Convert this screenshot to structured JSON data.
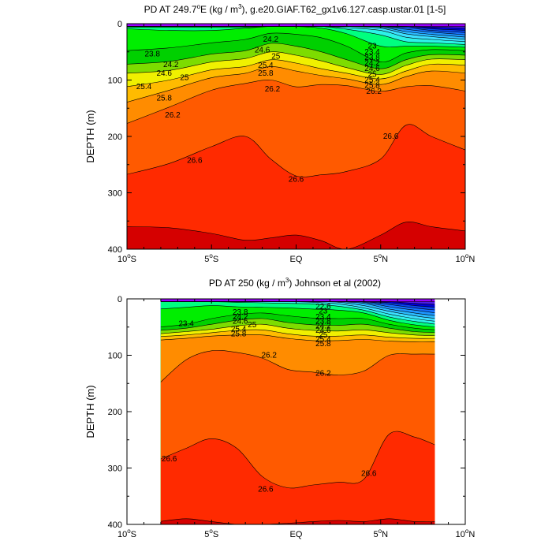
{
  "chart_data": [
    {
      "type": "contour",
      "title_prefix": "PD AT 249.7",
      "title_suffix": "E (kg / m",
      "title_tail": "), g.e20.GIAF.T62_gx1v6.127.casp.ustar.01 [1-5]",
      "superscript_degree": "o",
      "superscript_cube": "3",
      "ylabel": "DEPTH (m)",
      "ylim": [
        400,
        0
      ],
      "xlim": [
        -10,
        10
      ],
      "xticks": [
        {
          "v": -10,
          "main": "10",
          "deg": "o",
          "hem": "S"
        },
        {
          "v": -5,
          "main": "5",
          "deg": "o",
          "hem": "S"
        },
        {
          "v": 0,
          "main": "EQ",
          "deg": "",
          "hem": ""
        },
        {
          "v": 5,
          "main": "5",
          "deg": "o",
          "hem": "N"
        },
        {
          "v": 10,
          "main": "10",
          "deg": "o",
          "hem": "N"
        }
      ],
      "yticks": [
        0,
        100,
        200,
        300,
        400
      ],
      "data_range": [
        -10,
        10
      ],
      "x": [
        -10,
        -7.5,
        -5,
        -3,
        -1.5,
        0,
        1.5,
        3,
        5,
        6.5,
        8,
        10
      ],
      "contour_levels": [
        20.2,
        20.6,
        21.0,
        21.4,
        21.8,
        22.2,
        22.6,
        23.0,
        23.4,
        23.8,
        24.2,
        24.6,
        25.0,
        25.4,
        25.8,
        26.2,
        26.6,
        27.0
      ],
      "depth_of_level": [
        [
          5,
          5,
          5,
          5,
          5,
          5,
          5,
          5,
          5,
          5,
          5,
          5
        ],
        [
          5,
          5,
          5,
          5,
          5,
          5,
          5,
          5,
          5,
          5,
          6,
          8
        ],
        [
          5,
          5,
          5,
          5,
          5,
          5,
          5,
          5,
          5,
          5,
          9,
          12
        ],
        [
          5,
          5,
          5,
          5,
          5,
          5,
          5,
          5,
          5,
          7,
          12,
          16
        ],
        [
          5,
          5,
          5,
          5,
          5,
          5,
          5,
          5,
          5,
          10,
          15,
          20
        ],
        [
          5,
          5,
          5,
          5,
          5,
          5,
          5,
          5,
          6,
          14,
          19,
          24
        ],
        [
          5,
          5,
          5,
          5,
          5,
          5,
          5,
          5,
          8,
          18,
          23,
          28
        ],
        [
          5,
          5,
          5,
          5,
          5,
          5,
          5,
          7,
          12,
          24,
          28,
          32
        ],
        [
          6,
          6,
          6,
          6,
          5,
          5,
          5,
          10,
          20,
          32,
          34,
          37
        ],
        [
          9,
          12,
          12,
          8,
          5,
          5,
          8,
          18,
          40,
          40,
          40,
          42
        ],
        [
          48,
          43,
          34,
          28,
          17,
          19,
          25,
          40,
          68,
          52,
          46,
          48
        ],
        [
          72,
          67,
          54,
          48,
          35,
          40,
          50,
          64,
          80,
          64,
          55,
          56
        ],
        [
          88,
          83,
          68,
          62,
          50,
          56,
          66,
          78,
          90,
          74,
          63,
          64
        ],
        [
          112,
          100,
          82,
          76,
          64,
          70,
          80,
          88,
          98,
          84,
          72,
          74
        ],
        [
          140,
          118,
          96,
          88,
          76,
          84,
          92,
          98,
          108,
          94,
          84,
          88
        ],
        [
          178,
          148,
          118,
          106,
          100,
          112,
          108,
          110,
          120,
          112,
          110,
          120
        ],
        [
          268,
          248,
          218,
          200,
          240,
          270,
          268,
          262,
          240,
          180,
          200,
          225
        ],
        [
          360,
          362,
          372,
          384,
          380,
          375,
          385,
          400,
          375,
          352,
          360,
          368
        ]
      ],
      "band_colors": [
        "#9a00ff",
        "#4a1de8",
        "#0000d8",
        "#0a46f0",
        "#1570ff",
        "#1e96ff",
        "#2bbcff",
        "#3ce0ff",
        "#2cf2e8",
        "#00ff7f",
        "#00ee00",
        "#00d000",
        "#7ddc00",
        "#f0f000",
        "#ffbb00",
        "#ff8c00",
        "#ff5a00",
        "#ff2a00",
        "#d50000",
        "#c50000"
      ],
      "label_text": "26.6",
      "labels": [
        {
          "text": "23.8",
          "x": -8.5,
          "y": 54
        },
        {
          "text": "24.2",
          "x": -7.4,
          "y": 73
        },
        {
          "text": "24.6",
          "x": -7.8,
          "y": 88
        },
        {
          "text": "25",
          "x": -6.6,
          "y": 96
        },
        {
          "text": "25.4",
          "x": -9.0,
          "y": 112
        },
        {
          "text": "25.8",
          "x": -7.8,
          "y": 132
        },
        {
          "text": "26.2",
          "x": -7.3,
          "y": 162
        },
        {
          "text": "26.6",
          "x": -6.0,
          "y": 243
        },
        {
          "text": "26.6",
          "x": 0.0,
          "y": 276
        },
        {
          "text": "26.6",
          "x": 5.6,
          "y": 200
        },
        {
          "text": "24.2",
          "x": -1.5,
          "y": 28
        },
        {
          "text": "24.6",
          "x": -2.0,
          "y": 47
        },
        {
          "text": "25",
          "x": -1.2,
          "y": 58
        },
        {
          "text": "25.4",
          "x": -1.8,
          "y": 74
        },
        {
          "text": "25.8",
          "x": -1.8,
          "y": 88
        },
        {
          "text": "26.2",
          "x": -1.4,
          "y": 116
        },
        {
          "text": "23",
          "x": 4.5,
          "y": 40
        },
        {
          "text": "23.4",
          "x": 4.5,
          "y": 50
        },
        {
          "text": "23.8",
          "x": 4.5,
          "y": 60
        },
        {
          "text": "24.2",
          "x": 4.5,
          "y": 70
        },
        {
          "text": "24.6",
          "x": 4.5,
          "y": 80
        },
        {
          "text": "25",
          "x": 4.5,
          "y": 90
        },
        {
          "text": "25.4",
          "x": 4.5,
          "y": 100
        },
        {
          "text": "25.8",
          "x": 4.5,
          "y": 110
        },
        {
          "text": "26.2",
          "x": 4.6,
          "y": 120
        }
      ]
    },
    {
      "type": "contour",
      "title_prefix": "PD AT 250 (kg / m",
      "title_suffix": "",
      "title_tail": ") Johnson et al (2002)",
      "superscript_degree": "",
      "superscript_cube": "3",
      "ylabel": "DEPTH (m)",
      "ylim": [
        400,
        0
      ],
      "xlim": [
        -10,
        10
      ],
      "xticks": [
        {
          "v": -10,
          "main": "10",
          "deg": "o",
          "hem": "S"
        },
        {
          "v": -5,
          "main": "5",
          "deg": "o",
          "hem": "S"
        },
        {
          "v": 0,
          "main": "EQ",
          "deg": "",
          "hem": ""
        },
        {
          "v": 5,
          "main": "5",
          "deg": "o",
          "hem": "N"
        },
        {
          "v": 10,
          "main": "10",
          "deg": "o",
          "hem": "N"
        }
      ],
      "yticks": [
        0,
        100,
        200,
        300,
        400
      ],
      "data_range": [
        -8,
        8.2
      ],
      "x": [
        -8,
        -6.5,
        -5,
        -3.5,
        -2,
        -0.5,
        1,
        2.5,
        4,
        5.5,
        7,
        8.2
      ],
      "contour_levels": [
        20.2,
        20.6,
        21.0,
        21.4,
        21.8,
        22.2,
        22.6,
        23.0,
        23.4,
        23.8,
        24.2,
        24.6,
        25.0,
        25.4,
        25.8,
        26.2,
        26.6,
        27.0
      ],
      "depth_of_level": [
        [
          5,
          5,
          5,
          5,
          5,
          5,
          5,
          5,
          5,
          5,
          5,
          5
        ],
        [
          5,
          5,
          5,
          5,
          5,
          5,
          5,
          5,
          5,
          5,
          8,
          10
        ],
        [
          5,
          5,
          5,
          5,
          5,
          5,
          5,
          5,
          5,
          7,
          12,
          15
        ],
        [
          5,
          5,
          5,
          5,
          5,
          5,
          5,
          5,
          5,
          10,
          16,
          20
        ],
        [
          5,
          5,
          5,
          5,
          5,
          5,
          5,
          5,
          6,
          14,
          20,
          25
        ],
        [
          5,
          5,
          5,
          5,
          5,
          5,
          5,
          5,
          8,
          18,
          25,
          30
        ],
        [
          5,
          5,
          5,
          5,
          5,
          5,
          5,
          6,
          12,
          22,
          30,
          35
        ],
        [
          5,
          5,
          5,
          5,
          5,
          5,
          6,
          9,
          16,
          27,
          35,
          40
        ],
        [
          5,
          5,
          5,
          6,
          7,
          8,
          9,
          13,
          20,
          32,
          40,
          45
        ],
        [
          18,
          15,
          12,
          14,
          15,
          16,
          18,
          20,
          25,
          38,
          46,
          50
        ],
        [
          50,
          45,
          35,
          28,
          25,
          30,
          34,
          35,
          35,
          45,
          52,
          55
        ],
        [
          56,
          52,
          45,
          38,
          35,
          42,
          46,
          47,
          45,
          52,
          58,
          60
        ],
        [
          62,
          58,
          54,
          48,
          45,
          52,
          56,
          57,
          55,
          60,
          64,
          65
        ],
        [
          67,
          64,
          60,
          56,
          55,
          62,
          66,
          66,
          64,
          68,
          70,
          70
        ],
        [
          73,
          70,
          66,
          64,
          64,
          70,
          74,
          74,
          72,
          75,
          76,
          76
        ],
        [
          150,
          108,
          92,
          95,
          105,
          125,
          130,
          135,
          128,
          100,
          98,
          98
        ],
        [
          285,
          265,
          248,
          265,
          315,
          335,
          330,
          325,
          320,
          240,
          245,
          260
        ],
        [
          395,
          390,
          395,
          400,
          400,
          398,
          395,
          393,
          395,
          390,
          395,
          395
        ]
      ],
      "band_colors": [
        "#9a00ff",
        "#4a1de8",
        "#0000d8",
        "#0a46f0",
        "#1570ff",
        "#1e96ff",
        "#2bbcff",
        "#3ce0ff",
        "#2cf2e8",
        "#00ff7f",
        "#00ee00",
        "#00d000",
        "#7ddc00",
        "#f0f000",
        "#ffbb00",
        "#ff8c00",
        "#ff5a00",
        "#ff2a00",
        "#d50000",
        "#c50000"
      ],
      "label_text": "26.6",
      "labels": [
        {
          "text": "23.4",
          "x": -6.5,
          "y": 44
        },
        {
          "text": "23.8",
          "x": -3.3,
          "y": 24
        },
        {
          "text": "24.2",
          "x": -3.3,
          "y": 32
        },
        {
          "text": "24.6",
          "x": -3.3,
          "y": 40
        },
        {
          "text": "25",
          "x": -2.6,
          "y": 46
        },
        {
          "text": "25.4",
          "x": -3.4,
          "y": 54
        },
        {
          "text": "25.8",
          "x": -3.4,
          "y": 62
        },
        {
          "text": "26.2",
          "x": -1.6,
          "y": 100
        },
        {
          "text": "22.6",
          "x": 1.6,
          "y": 14
        },
        {
          "text": "23",
          "x": 1.6,
          "y": 22
        },
        {
          "text": "23.4",
          "x": 1.6,
          "y": 32
        },
        {
          "text": "23.8",
          "x": 1.6,
          "y": 40
        },
        {
          "text": "24.2",
          "x": 1.6,
          "y": 48
        },
        {
          "text": "24.6",
          "x": 1.6,
          "y": 56
        },
        {
          "text": "25",
          "x": 1.6,
          "y": 64
        },
        {
          "text": "25.4",
          "x": 1.6,
          "y": 72
        },
        {
          "text": "25.8",
          "x": 1.6,
          "y": 80
        },
        {
          "text": "26.2",
          "x": 1.6,
          "y": 132
        },
        {
          "text": "26.6",
          "x": -7.5,
          "y": 284
        },
        {
          "text": "26.6",
          "x": -1.8,
          "y": 338
        },
        {
          "text": "26.6",
          "x": 4.3,
          "y": 310
        }
      ],
      "missing_color": "#bbbbbb"
    }
  ]
}
